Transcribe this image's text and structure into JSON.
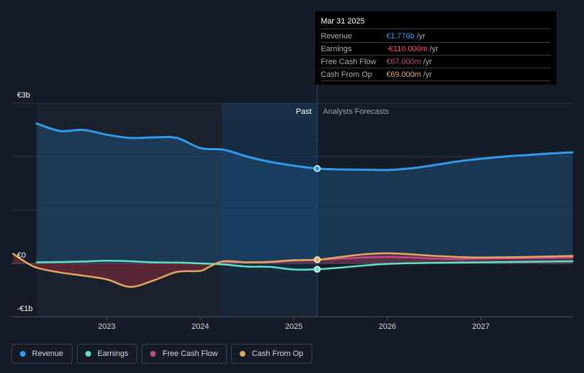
{
  "chart_data": {
    "type": "area",
    "currency_axis": {
      "ylim": [
        -1000,
        3000
      ],
      "ticks": [
        {
          "v": 3000,
          "label": "€3b"
        },
        {
          "v": 0,
          "label": "€0"
        },
        {
          "v": -1000,
          "label": "-€1b"
        }
      ]
    },
    "x_ticks": [
      {
        "x": 2023.0,
        "label": "2023"
      },
      {
        "x": 2024.0,
        "label": "2024"
      },
      {
        "x": 2025.0,
        "label": "2025"
      },
      {
        "x": 2026.0,
        "label": "2026"
      },
      {
        "x": 2027.0,
        "label": "2027"
      }
    ],
    "xlim": [
      2021.98,
      2027.98
    ],
    "divider_x": 2025.25,
    "highlight_start_x": 2024.23,
    "past_label": "Past",
    "forecast_label": "Analysts Forecasts",
    "series": [
      {
        "name": "Revenue",
        "color": "#2f9be9",
        "fill": true,
        "points": [
          [
            2022.25,
            2620
          ],
          [
            2022.5,
            2480
          ],
          [
            2022.75,
            2500
          ],
          [
            2023.0,
            2410
          ],
          [
            2023.25,
            2350
          ],
          [
            2023.5,
            2360
          ],
          [
            2023.75,
            2350
          ],
          [
            2024.0,
            2160
          ],
          [
            2024.25,
            2130
          ],
          [
            2024.5,
            2000
          ],
          [
            2024.75,
            1900
          ],
          [
            2025.0,
            1830
          ],
          [
            2025.25,
            1776
          ],
          [
            2025.5,
            1760
          ],
          [
            2025.75,
            1755
          ],
          [
            2026.0,
            1750
          ],
          [
            2026.25,
            1780
          ],
          [
            2026.5,
            1840
          ],
          [
            2026.75,
            1910
          ],
          [
            2027.0,
            1960
          ],
          [
            2027.25,
            2000
          ],
          [
            2027.5,
            2030
          ],
          [
            2027.75,
            2060
          ],
          [
            2027.98,
            2080
          ]
        ]
      },
      {
        "name": "Earnings",
        "color": "#5fe2c8",
        "fill": false,
        "points": [
          [
            2022.25,
            20
          ],
          [
            2022.5,
            25
          ],
          [
            2022.75,
            35
          ],
          [
            2023.0,
            50
          ],
          [
            2023.25,
            40
          ],
          [
            2023.5,
            20
          ],
          [
            2023.75,
            15
          ],
          [
            2024.0,
            0
          ],
          [
            2024.25,
            -20
          ],
          [
            2024.5,
            -60
          ],
          [
            2024.75,
            -65
          ],
          [
            2025.0,
            -115
          ],
          [
            2025.25,
            -110
          ],
          [
            2025.5,
            -80
          ],
          [
            2025.75,
            -40
          ],
          [
            2026.0,
            -10
          ],
          [
            2026.5,
            10
          ],
          [
            2027.0,
            20
          ],
          [
            2027.5,
            30
          ],
          [
            2027.98,
            40
          ]
        ]
      },
      {
        "name": "Free Cash Flow",
        "color": "#c24a85",
        "fill": false,
        "points": [
          [
            2024.25,
            30
          ],
          [
            2024.5,
            20
          ],
          [
            2024.75,
            20
          ],
          [
            2025.0,
            50
          ],
          [
            2025.25,
            67
          ],
          [
            2025.5,
            90
          ],
          [
            2025.75,
            110
          ],
          [
            2026.0,
            120
          ],
          [
            2026.25,
            110
          ],
          [
            2026.5,
            90
          ],
          [
            2026.75,
            80
          ],
          [
            2027.0,
            90
          ],
          [
            2027.5,
            100
          ],
          [
            2027.98,
            110
          ]
        ]
      },
      {
        "name": "Cash From Op",
        "color": "#e6a760",
        "fill": true,
        "points": [
          [
            2022.0,
            180
          ],
          [
            2022.1,
            60
          ],
          [
            2022.25,
            -80
          ],
          [
            2022.5,
            -170
          ],
          [
            2022.75,
            -230
          ],
          [
            2023.0,
            -300
          ],
          [
            2023.25,
            -440
          ],
          [
            2023.5,
            -320
          ],
          [
            2023.75,
            -160
          ],
          [
            2024.0,
            -140
          ],
          [
            2024.1,
            -60
          ],
          [
            2024.25,
            40
          ],
          [
            2024.5,
            20
          ],
          [
            2024.75,
            30
          ],
          [
            2025.0,
            60
          ],
          [
            2025.25,
            69
          ],
          [
            2025.5,
            120
          ],
          [
            2025.75,
            170
          ],
          [
            2026.0,
            190
          ],
          [
            2026.25,
            170
          ],
          [
            2026.5,
            140
          ],
          [
            2026.75,
            120
          ],
          [
            2027.0,
            110
          ],
          [
            2027.5,
            120
          ],
          [
            2027.98,
            140
          ]
        ]
      }
    ],
    "markers": [
      {
        "series": "Revenue",
        "x": 2025.25,
        "y": 1776
      },
      {
        "series": "Earnings",
        "x": 2025.25,
        "y": -110
      },
      {
        "series": "Cash From Op",
        "x": 2025.25,
        "y": 69
      }
    ]
  },
  "tooltip": {
    "date": "Mar 31 2025",
    "rows": [
      {
        "label": "Revenue",
        "value": "€1.776b",
        "unit": "/yr",
        "color": "#2f9be9"
      },
      {
        "label": "Earnings",
        "value": "-€110.000m",
        "unit": "/yr",
        "color": "#ff4d5e"
      },
      {
        "label": "Free Cash Flow",
        "value": "€67.000m",
        "unit": "/yr",
        "color": "#c24a85"
      },
      {
        "label": "Cash From Op",
        "value": "€69.000m",
        "unit": "/yr",
        "color": "#e6a760"
      }
    ]
  },
  "legend": [
    {
      "label": "Revenue",
      "color": "#2f9be9"
    },
    {
      "label": "Earnings",
      "color": "#5fe2c8"
    },
    {
      "label": "Free Cash Flow",
      "color": "#c24a85"
    },
    {
      "label": "Cash From Op",
      "color": "#e6a760"
    }
  ]
}
